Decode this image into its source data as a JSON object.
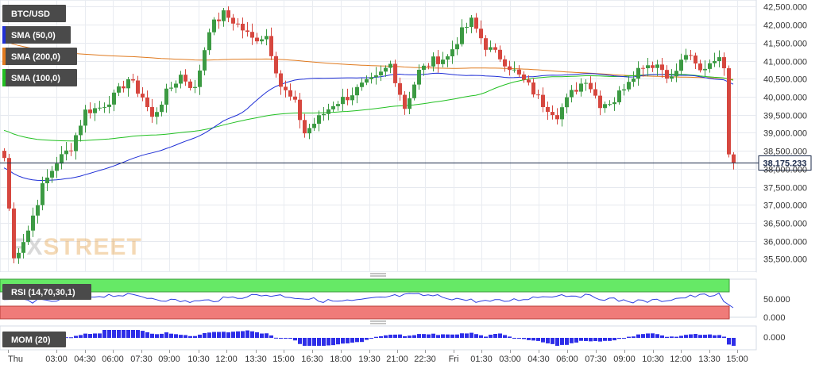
{
  "chart_data": {
    "type": "candlestick",
    "instrument": "BTC/USD",
    "legend": [
      {
        "label": "SMA (50,0)",
        "color": "#1f2fd6"
      },
      {
        "label": "SMA (200,0)",
        "color": "#e07a1f"
      },
      {
        "label": "SMA (100,0)",
        "color": "#22c022"
      }
    ],
    "up_color": "#3c9a43",
    "down_color": "#d6473f",
    "y_ticks": [
      "42,500.000",
      "42,000.000",
      "41,500.000",
      "41,000.000",
      "40,500.000",
      "40,000.000",
      "39,500.000",
      "39,000.000",
      "38,500.000",
      "38,000.000",
      "37,500.000",
      "37,000.000",
      "36,500.000",
      "36,000.000",
      "35,500.000"
    ],
    "y_tick_values": [
      42500,
      42000,
      41500,
      41000,
      40500,
      40000,
      39500,
      39000,
      38500,
      38000,
      37500,
      37000,
      36500,
      36000,
      35500
    ],
    "ylim": [
      35200,
      42620
    ],
    "last_price_label": "38,175.233",
    "last_price": 38175.233,
    "x_ticks": [
      "Thu",
      "03:00",
      "04:30",
      "06:00",
      "07:30",
      "09:00",
      "10:30",
      "12:00",
      "13:30",
      "15:00",
      "16:30",
      "18:00",
      "19:30",
      "21:00",
      "22:30",
      "Fri",
      "01:30",
      "03:00",
      "04:30",
      "06:00",
      "07:30",
      "09:00",
      "10:30",
      "12:00",
      "13:30",
      "15:00"
    ],
    "close_anchors": [
      [
        0,
        38300
      ],
      [
        2,
        35500
      ],
      [
        5,
        36300
      ],
      [
        8,
        37500
      ],
      [
        11,
        38200
      ],
      [
        14,
        38600
      ],
      [
        17,
        39600
      ],
      [
        20,
        39700
      ],
      [
        23,
        40000
      ],
      [
        26,
        40500
      ],
      [
        29,
        40000
      ],
      [
        31,
        39400
      ],
      [
        34,
        40100
      ],
      [
        37,
        40600
      ],
      [
        40,
        40200
      ],
      [
        43,
        41900
      ],
      [
        46,
        42300
      ],
      [
        49,
        42000
      ],
      [
        52,
        41600
      ],
      [
        55,
        41700
      ],
      [
        58,
        40300
      ],
      [
        61,
        39800
      ],
      [
        63,
        39000
      ],
      [
        66,
        39400
      ],
      [
        69,
        39800
      ],
      [
        72,
        40000
      ],
      [
        75,
        40300
      ],
      [
        78,
        40500
      ],
      [
        81,
        40900
      ],
      [
        84,
        39700
      ],
      [
        87,
        40700
      ],
      [
        90,
        41000
      ],
      [
        93,
        41100
      ],
      [
        96,
        41800
      ],
      [
        98,
        42100
      ],
      [
        101,
        41400
      ],
      [
        104,
        41100
      ],
      [
        107,
        40700
      ],
      [
        110,
        40300
      ],
      [
        113,
        39800
      ],
      [
        116,
        39500
      ],
      [
        119,
        40100
      ],
      [
        122,
        40500
      ],
      [
        125,
        39800
      ],
      [
        128,
        39900
      ],
      [
        131,
        40500
      ],
      [
        134,
        40900
      ],
      [
        137,
        40900
      ],
      [
        140,
        40500
      ],
      [
        143,
        41200
      ],
      [
        146,
        40700
      ],
      [
        149,
        41100
      ],
      [
        151,
        40900
      ],
      [
        152,
        38400
      ],
      [
        153,
        38175
      ]
    ],
    "rsi": {
      "label": "RSI (14,70,30,1)",
      "tick": "50.000",
      "bottom_tick": "0.000",
      "overbought_color": "#66e966",
      "oversold_color": "#f07b79",
      "line_color": "#2b3ee0"
    },
    "mom": {
      "label": "MOM (20)",
      "tick": "0.000",
      "bar_color": "#2e2ee8"
    },
    "watermark": {
      "prefix": "FX",
      "suffix": "STREET"
    }
  }
}
